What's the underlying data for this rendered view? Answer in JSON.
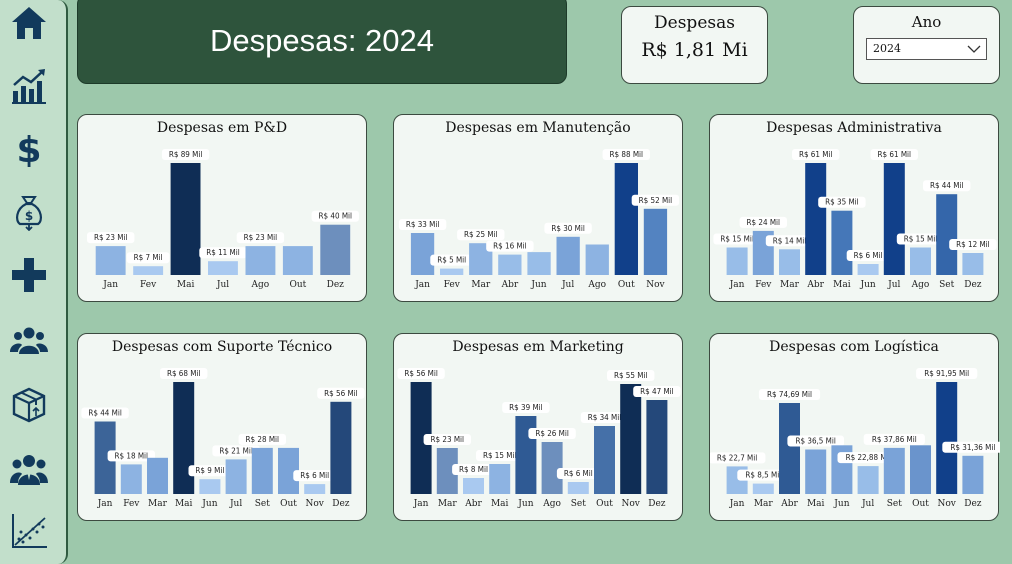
{
  "header": {
    "title": "Despesas: 2024"
  },
  "kpi": {
    "label": "Despesas",
    "value": "R$ 1,81 Mi"
  },
  "year_filter": {
    "label": "Ano",
    "selected": "2024"
  },
  "sidebar": {
    "items": [
      {
        "icon": "home-icon"
      },
      {
        "icon": "bar-chart-icon"
      },
      {
        "icon": "dollar-icon"
      },
      {
        "icon": "money-bag-icon"
      },
      {
        "icon": "plus-icon"
      },
      {
        "icon": "users-group-icon"
      },
      {
        "icon": "box-icon"
      },
      {
        "icon": "team-icon"
      },
      {
        "icon": "scatter-trend-icon"
      }
    ]
  },
  "colors": {
    "light": "#93b8e6",
    "mid": "#6a8fc2",
    "dark": "#2c5285",
    "darkest": "#0d2d5a"
  },
  "chart_data": [
    {
      "type": "bar",
      "title": "Despesas em P&D",
      "categories": [
        "Jan",
        "Fev",
        "Mai",
        "Jul",
        "Ago",
        "Out",
        "Dez"
      ],
      "values": [
        23,
        7,
        89,
        11,
        23,
        23,
        40
      ],
      "labels": [
        "R$ 23 Mil",
        "R$ 7 Mil",
        "R$ 89 Mil",
        "R$ 11 Mil",
        "R$ 23 Mil",
        "",
        "R$ 40 Mil"
      ],
      "colors": [
        "#8db3e2",
        "#a9c9f0",
        "#0f2d55",
        "#a9c9f0",
        "#8db3e2",
        "#8db3e2",
        "#6d8fbd"
      ]
    },
    {
      "type": "bar",
      "title": "Despesas em Manutenção",
      "categories": [
        "Jan",
        "Fev",
        "Mar",
        "Abr",
        "Jun",
        "Jul",
        "Ago",
        "Out",
        "Nov"
      ],
      "values": [
        33,
        5,
        25,
        16,
        18,
        30,
        24,
        88,
        52
      ],
      "labels": [
        "R$ 33 Mil",
        "R$ 5 Mil",
        "R$ 25 Mil",
        "R$ 16 Mil",
        "",
        "R$ 30 Mil",
        "",
        "R$ 88 Mil",
        "R$ 52 Mil"
      ],
      "colors": [
        "#7aa3d8",
        "#a9c9f0",
        "#8db3e2",
        "#98bde8",
        "#98bde8",
        "#7aa3d8",
        "#8db3e2",
        "#11408a",
        "#5383c1"
      ]
    },
    {
      "type": "bar",
      "title": "Despesas Administrativa",
      "categories": [
        "Jan",
        "Fev",
        "Mar",
        "Abr",
        "Mai",
        "Jun",
        "Jul",
        "Ago",
        "Set",
        "Dez"
      ],
      "values": [
        15,
        24,
        14,
        61,
        35,
        6,
        61,
        15,
        44,
        12
      ],
      "labels": [
        "R$ 15 Mil",
        "R$ 24 Mil",
        "R$ 14 Mil",
        "R$ 61 Mil",
        "R$ 35 Mil",
        "R$ 6 Mil",
        "R$ 61 Mil",
        "R$ 15 Mil",
        "R$ 44 Mil",
        "R$ 12 Mil"
      ],
      "colors": [
        "#98bde8",
        "#7aa3d8",
        "#98bde8",
        "#11408a",
        "#4577b8",
        "#a9c9f0",
        "#11408a",
        "#98bde8",
        "#3466aa",
        "#98bde8"
      ]
    },
    {
      "type": "bar",
      "title": "Despesas com Suporte Técnico",
      "categories": [
        "Jan",
        "Fev",
        "Mar",
        "Mai",
        "Jun",
        "Jul",
        "Set",
        "Out",
        "Nov",
        "Dez"
      ],
      "values": [
        44,
        18,
        22,
        68,
        9,
        21,
        28,
        28,
        6,
        56
      ],
      "labels": [
        "R$ 44 Mil",
        "R$ 18 Mil",
        "",
        "R$ 68 Mil",
        "R$ 9 Mil",
        "R$ 21 Mil",
        "R$ 28 Mil",
        "",
        "R$ 6 Mil",
        "R$ 56 Mil"
      ],
      "colors": [
        "#3c6498",
        "#8db3e2",
        "#7aa3d8",
        "#0f2d55",
        "#a9c9f0",
        "#8db3e2",
        "#7aa3d8",
        "#7aa3d8",
        "#a9c9f0",
        "#24487a"
      ]
    },
    {
      "type": "bar",
      "title": "Despesas em Marketing",
      "categories": [
        "Jan",
        "Mar",
        "Abr",
        "Mai",
        "Jun",
        "Ago",
        "Set",
        "Out",
        "Nov",
        "Dez"
      ],
      "values": [
        56,
        23,
        8,
        15,
        39,
        26,
        6,
        34,
        55,
        47
      ],
      "labels": [
        "R$ 56 Mil",
        "R$ 23 Mil",
        "R$ 8 Mil",
        "R$ 15 Mil",
        "R$ 39 Mil",
        "R$ 26 Mil",
        "R$ 6 Mil",
        "R$ 34 Mil",
        "R$ 55 Mil",
        "R$ 47 Mil"
      ],
      "colors": [
        "#0f2d55",
        "#6d8fbd",
        "#a9c9f0",
        "#8db3e2",
        "#2f5a94",
        "#6d8fbd",
        "#a9c9f0",
        "#4570a8",
        "#0f2d55",
        "#24487a"
      ]
    },
    {
      "type": "bar",
      "title": "Despesas com Logística",
      "categories": [
        "Jan",
        "Mar",
        "Abr",
        "Mai",
        "Jun",
        "Jul",
        "Set",
        "Out",
        "Nov",
        "Dez"
      ],
      "values": [
        22.7,
        8.5,
        74.69,
        36.5,
        40,
        22.88,
        37.86,
        40,
        91.95,
        31.36
      ],
      "labels": [
        "R$ 22,7 Mil",
        "R$ 8,5 Mil",
        "R$ 74,69 Mil",
        "R$ 36,5 Mil",
        "",
        "R$ 22,88 Mil",
        "R$ 37,86 Mil",
        "",
        "R$ 91,95 Mil",
        "R$ 31,36 Mil"
      ],
      "colors": [
        "#98bde8",
        "#a9c9f0",
        "#2f5a94",
        "#7aa3d8",
        "#7aa3d8",
        "#98bde8",
        "#7aa3d8",
        "#6a94cc",
        "#11408a",
        "#7aa3d8"
      ]
    }
  ]
}
